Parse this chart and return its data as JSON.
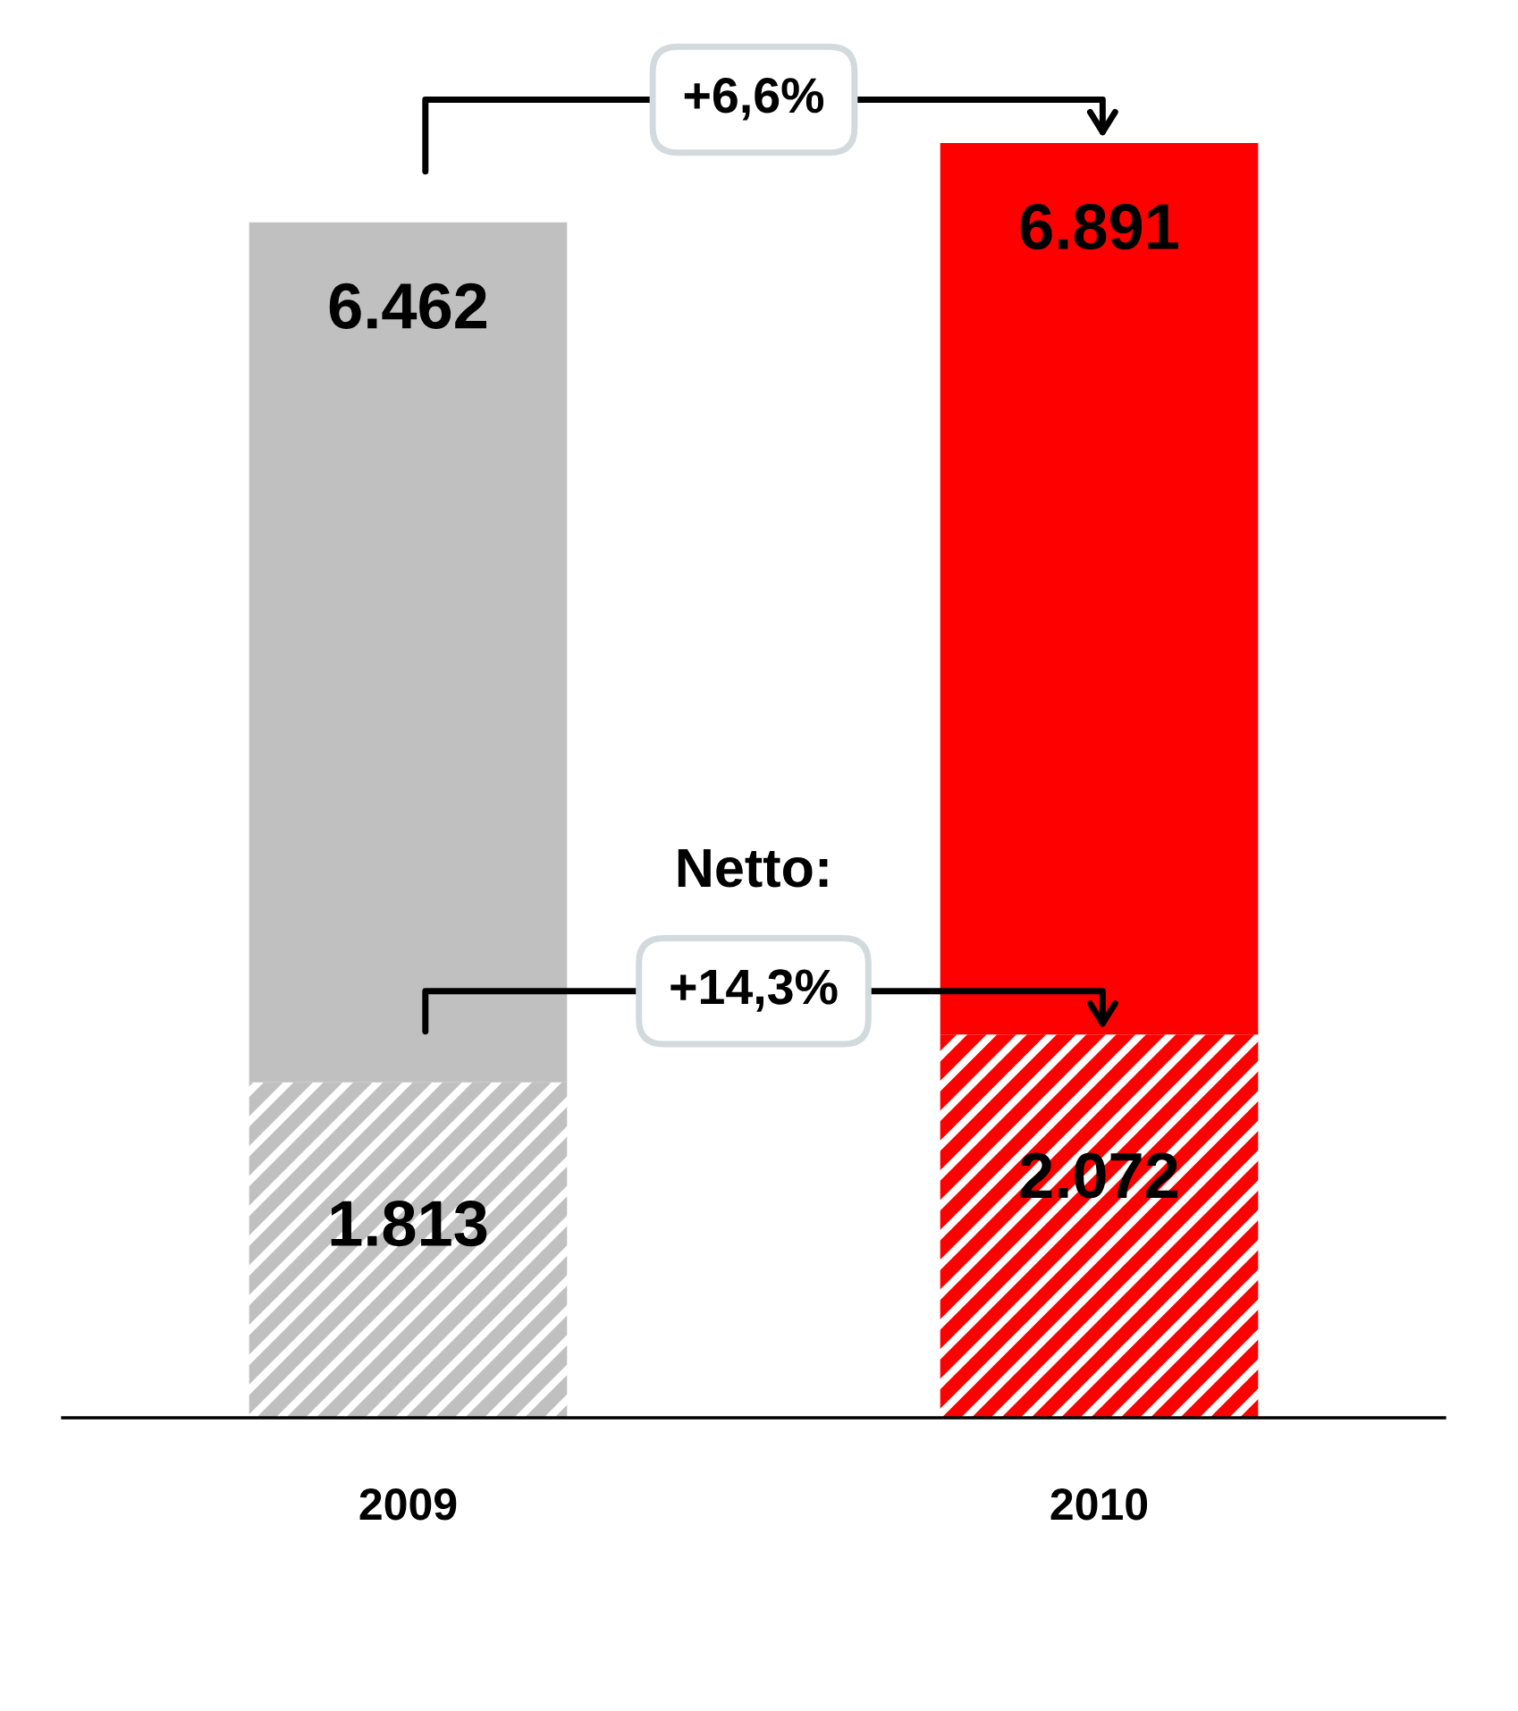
{
  "chart_data": {
    "type": "bar",
    "stacked": true,
    "categories": [
      "2009",
      "2010"
    ],
    "series": [
      {
        "colors": [
          "#c0c0c0",
          "#ff0000"
        ],
        "values": [
          1813,
          2072
        ],
        "value_labels": [
          "1.813",
          "2.072"
        ]
      },
      {
        "colors": [
          "#c0c0c0",
          "#ff0000"
        ],
        "values": [
          4649,
          4819
        ]
      }
    ],
    "totals": [
      "6.462",
      "6.891"
    ],
    "annotations": [
      "+6,6%",
      "Netto:",
      "+14,3%"
    ],
    "grid": false,
    "legend": false,
    "tick_labels": "x"
  }
}
